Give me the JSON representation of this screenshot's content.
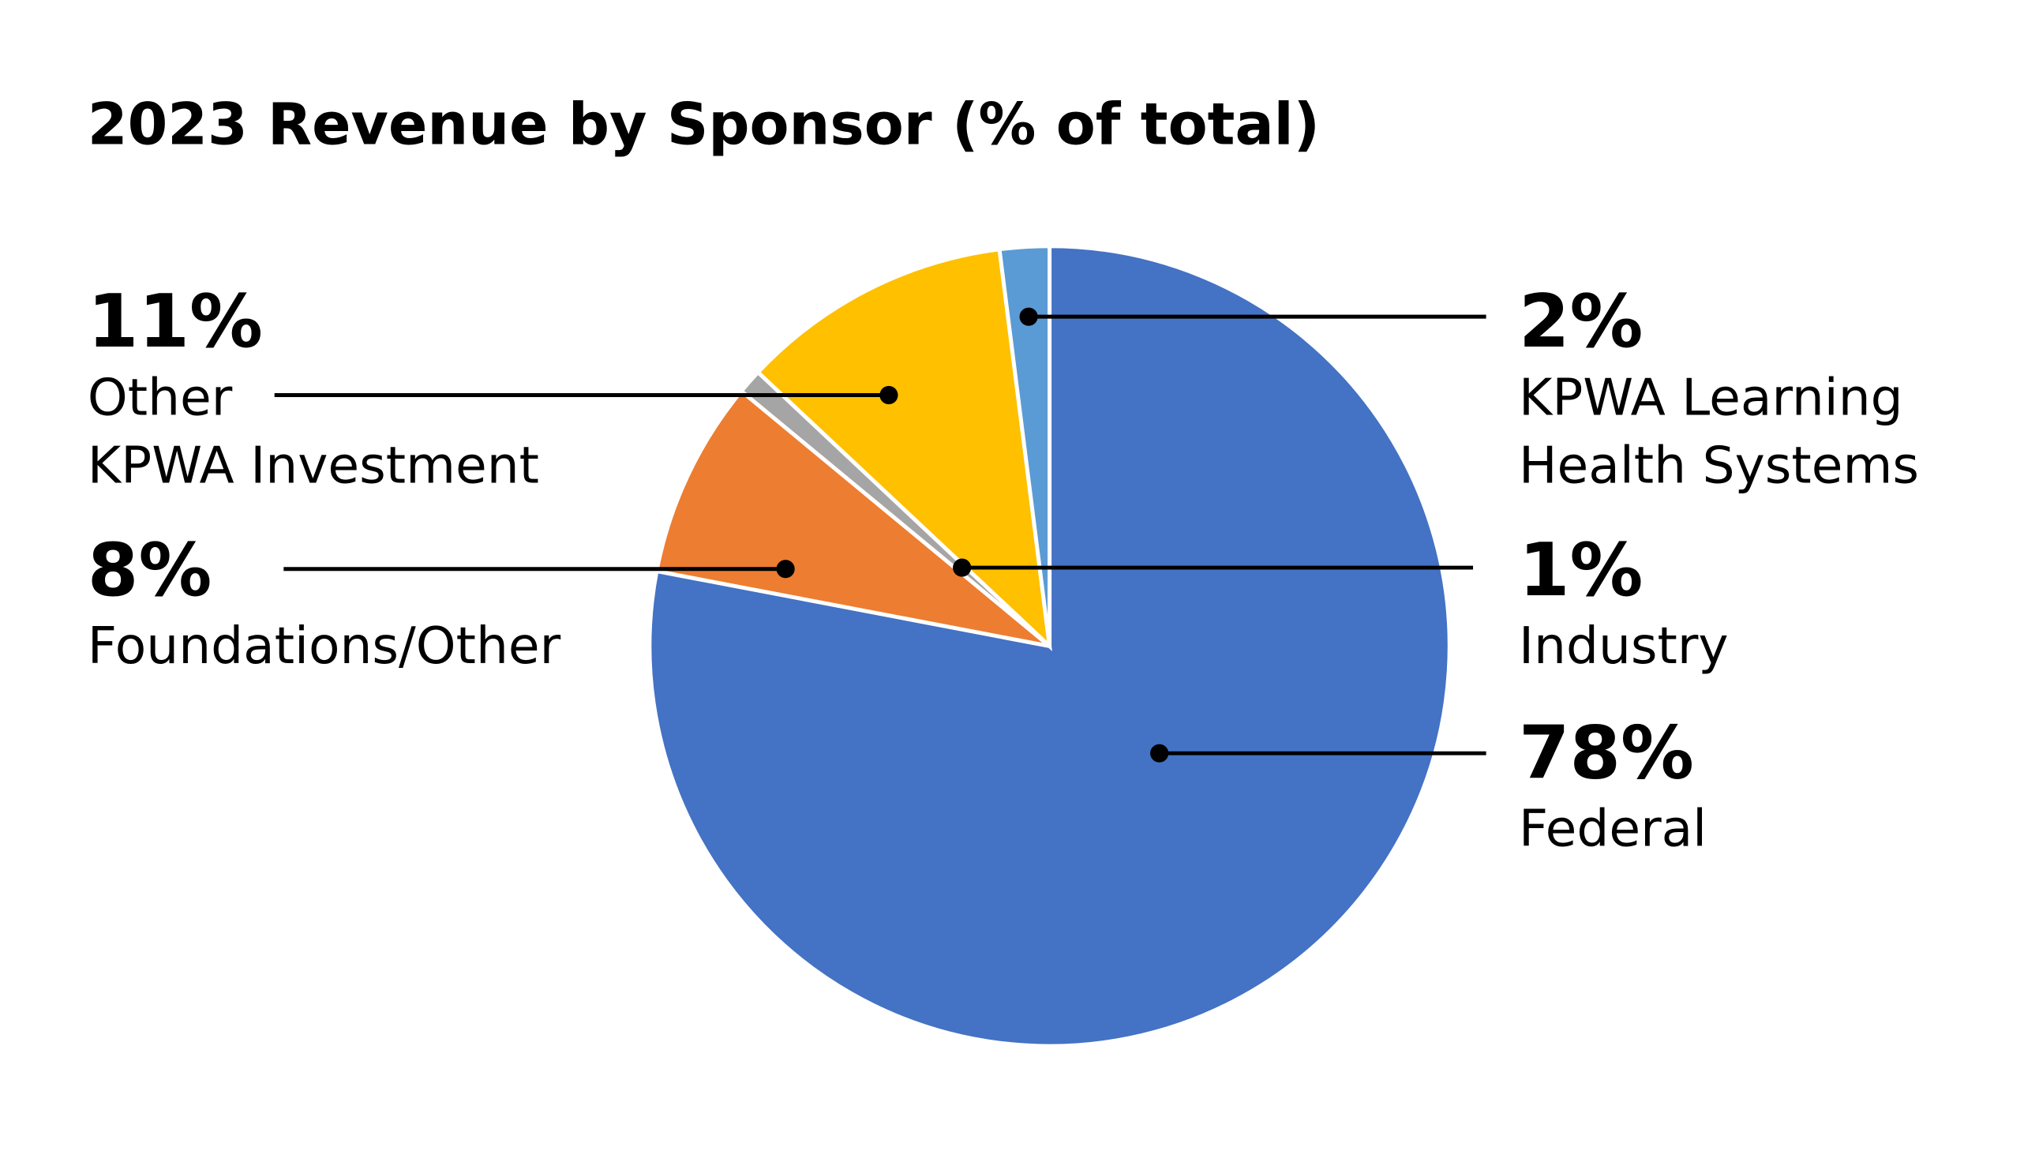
{
  "chart_data": {
    "type": "pie",
    "title": "2023 Revenue by Sponsor (% of total)",
    "categories": [
      "Federal",
      "Foundations/Other",
      "Industry",
      "Other\nKPWA Investment",
      "KPWA Learning\nHealth Systems"
    ],
    "values": [
      78,
      8,
      1,
      11,
      2
    ],
    "value_labels": [
      "78%",
      "8%",
      "1%",
      "11%",
      "2%"
    ],
    "colors": [
      "#4472c4",
      "#ed7d31",
      "#a5a5a5",
      "#ffc000",
      "#5b9bd5"
    ]
  }
}
